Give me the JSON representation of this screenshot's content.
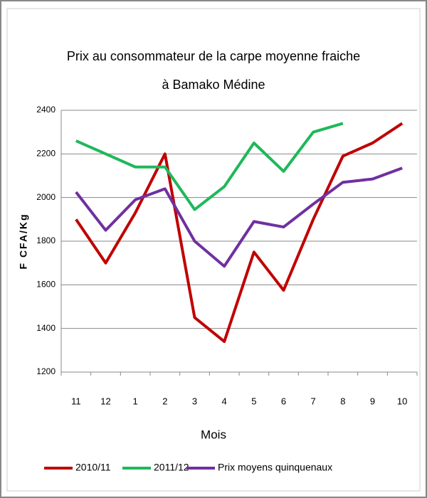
{
  "chart_data": {
    "type": "line",
    "title": [
      "Prix au consommateur de la carpe  moyenne fraiche",
      "à Bamako Médine"
    ],
    "x_label": "Mois",
    "y_label": "F CFA/Kg",
    "categories": [
      "11",
      "12",
      "1",
      "2",
      "3",
      "4",
      "5",
      "6",
      "7",
      "8",
      "9",
      "10"
    ],
    "series": [
      {
        "name": "2010/11",
        "color": "#c00000",
        "values": [
          1900,
          1700,
          1930,
          2200,
          1450,
          1340,
          1750,
          1575,
          1900,
          2190,
          2250,
          2340
        ]
      },
      {
        "name": "2011/12",
        "color": "#1fb85a",
        "values": [
          2260,
          2200,
          2140,
          2140,
          1945,
          2050,
          2250,
          2120,
          2300,
          2340,
          null,
          null
        ]
      },
      {
        "name": "Prix moyens quinquenaux",
        "color": "#7030a0",
        "values": [
          2025,
          1850,
          1990,
          2040,
          1800,
          1685,
          1890,
          1865,
          1970,
          2070,
          2085,
          2135
        ]
      }
    ],
    "ylim": [
      1200,
      2400
    ],
    "yticks": [
      1200,
      1400,
      1600,
      1800,
      2000,
      2200,
      2400
    ],
    "grid": true,
    "legend": "bottom"
  }
}
